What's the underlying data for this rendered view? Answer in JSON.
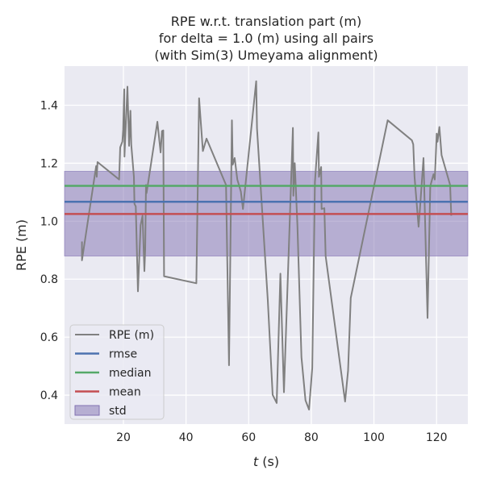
{
  "chart_data": {
    "type": "line",
    "title": [
      "RPE w.r.t. translation part (m)",
      "for delta = 1.0 (m) using all pairs",
      "(with Sim(3) Umeyama alignment)"
    ],
    "xlabel_italic": "t",
    "xlabel_rest": " (s)",
    "ylabel": "RPE (m)",
    "xlim": [
      1.2,
      130
    ],
    "ylim": [
      0.3,
      1.535
    ],
    "xticks": [
      20,
      40,
      60,
      80,
      100,
      120
    ],
    "yticks": [
      0.4,
      0.6,
      0.8,
      1.0,
      1.2,
      1.4
    ],
    "ytick_labels": [
      "0.4",
      "0.6",
      "0.8",
      "1.0",
      "1.2",
      "1.4"
    ],
    "grid": true,
    "background": "#EAEAF2",
    "legend_position": "lower-left",
    "series": [
      {
        "name": "RPE (m)",
        "color": "#808080",
        "x": [
          6.76,
          6.76,
          11.3,
          11.48,
          11.74,
          18.63,
          18.97,
          19.66,
          19.92,
          20.26,
          20.34,
          21.29,
          21.81,
          22.25,
          22.5,
          23.35,
          23.54,
          23.95,
          24.65,
          25.5,
          26.12,
          26.71,
          26.97,
          27.23,
          27.41,
          30.84,
          31.87,
          32.31,
          32.72,
          32.98,
          43.3,
          44.18,
          45.37,
          46.53,
          52.77,
          53.73,
          54.66,
          54.92,
          55.54,
          56.39,
          57.5,
          58.19,
          62.4,
          62.66,
          66.12,
          67.66,
          68.95,
          70.14,
          71.28,
          74.12,
          74.27,
          74.71,
          75.56,
          76.85,
          78.14,
          79.28,
          80.31,
          81.16,
          82.27,
          82.45,
          83.15,
          83.3,
          84.18,
          84.59,
          90.79,
          91.74,
          92.59,
          104.39,
          112.13,
          112.57,
          112.98,
          114.27,
          114.71,
          115.82,
          117.11,
          117.99,
          119.02,
          119.43,
          120.05,
          120.31,
          120.9,
          121.6,
          124.34,
          124.7
        ],
        "y": [
          0.93,
          0.865,
          1.19,
          1.153,
          1.204,
          1.144,
          1.255,
          1.274,
          1.316,
          1.455,
          1.223,
          1.464,
          1.26,
          1.381,
          1.265,
          1.153,
          1.06,
          1.051,
          0.758,
          0.986,
          1.019,
          0.828,
          0.903,
          1.125,
          1.097,
          1.343,
          1.237,
          1.311,
          1.313,
          0.81,
          0.786,
          1.424,
          1.242,
          1.285,
          1.125,
          0.503,
          1.348,
          1.195,
          1.218,
          1.144,
          1.102,
          1.042,
          1.483,
          1.32,
          0.726,
          0.401,
          0.373,
          0.819,
          0.41,
          1.322,
          1.088,
          1.2,
          0.986,
          0.531,
          0.382,
          0.35,
          0.494,
          1.135,
          1.306,
          1.153,
          1.187,
          1.042,
          1.045,
          0.879,
          0.378,
          0.485,
          0.735,
          1.348,
          1.279,
          1.265,
          1.153,
          0.981,
          1.042,
          1.218,
          0.666,
          1.121,
          1.162,
          1.144,
          1.302,
          1.274,
          1.325,
          1.228,
          1.125,
          1.019
        ]
      },
      {
        "name": "rmse",
        "color": "#4C72B0",
        "value": 1.067
      },
      {
        "name": "median",
        "color": "#55A868",
        "value": 1.122
      },
      {
        "name": "mean",
        "color": "#C44E52",
        "value": 1.025
      },
      {
        "name": "std",
        "color": "#8172B2",
        "range": [
          0.88,
          1.172
        ]
      }
    ]
  }
}
